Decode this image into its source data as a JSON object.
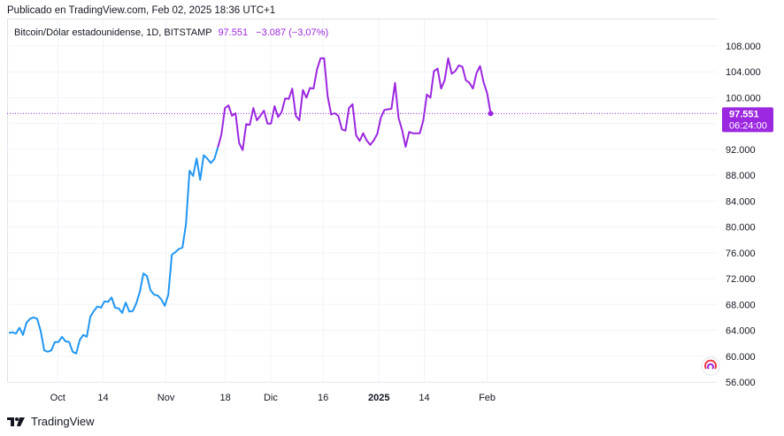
{
  "header": {
    "published": "Publicado en TradingView.com, Feb 02, 2025 18:36 UTC+1"
  },
  "legend": {
    "symbol": "Bitcoin/Dólar estadounidense, 1D, BITSTAMP",
    "last": "97.551",
    "change": "−3.087 (−3,07%)"
  },
  "price_label": {
    "price": "97.551",
    "countdown": "06:24:00"
  },
  "brand": {
    "name": "TradingView"
  },
  "colors": {
    "line_before": "#2196f3",
    "line_after": "#9c27e0",
    "price_tag": "#9c27e0",
    "grid": "#f0f3fa"
  },
  "chart_data": {
    "type": "line",
    "x_start": "2024-09-17",
    "x_end": "2025-02-02",
    "x_tick_labels": [
      "Oct",
      "14",
      "Nov",
      "18",
      "Dic",
      "16",
      "2025",
      "14",
      "Feb"
    ],
    "y_tick_labels": [
      "56.000",
      "60.000",
      "64.000",
      "68.000",
      "72.000",
      "76.000",
      "80.000",
      "84.000",
      "88.000",
      "92.000",
      "96.000",
      "100.000",
      "104.000",
      "108.000"
    ],
    "ylim": [
      56000,
      110000
    ],
    "grid": true,
    "last_price": 97551,
    "series": [
      {
        "values": [
          63600,
          63700,
          63500,
          64400,
          63300,
          65200,
          65800,
          66000,
          65800,
          63900,
          60900,
          60700,
          60900,
          62200,
          62200,
          63000,
          62300,
          62200,
          60700,
          60400,
          62500,
          63300,
          63000,
          66100,
          67000,
          67700,
          67500,
          68500,
          68400,
          69100,
          67500,
          67400,
          66700,
          68300,
          66900,
          67000,
          68200,
          70000,
          72800,
          72400,
          70200,
          69500,
          69400,
          68800,
          67800,
          69500,
          75700,
          76100,
          76600,
          76800,
          80500,
          88700,
          87900,
          90600,
          87300,
          91100,
          90600,
          89900,
          90500,
          92300,
          94300,
          98400,
          98800,
          97200,
          97600,
          93000,
          91900,
          95900,
          95800,
          98400,
          96500,
          97200,
          98000,
          96000,
          96000,
          98700,
          97000,
          97800,
          99900,
          99800,
          101400,
          97200,
          96500,
          101200,
          100000,
          101500,
          101400,
          104400,
          106100,
          106100,
          100200,
          97400,
          97600,
          97200,
          95100,
          94900,
          98400,
          99000,
          94200,
          93300,
          94500,
          93400,
          92700,
          93400,
          94400,
          96900,
          98100,
          98200,
          98300,
          102300,
          96900,
          95000,
          92400,
          94700,
          94500,
          94500,
          94500,
          96500,
          100500,
          100000,
          104100,
          104500,
          101400,
          102700,
          106100,
          103700,
          104100,
          105000,
          104800,
          102700,
          102300,
          101400,
          103800,
          104900,
          102400,
          100700,
          97551
        ]
      }
    ]
  }
}
